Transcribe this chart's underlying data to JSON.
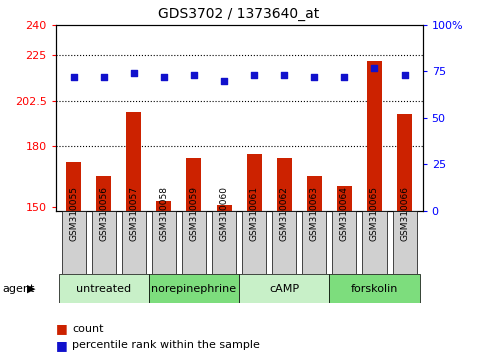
{
  "title": "GDS3702 / 1373640_at",
  "samples": [
    "GSM310055",
    "GSM310056",
    "GSM310057",
    "GSM310058",
    "GSM310059",
    "GSM310060",
    "GSM310061",
    "GSM310062",
    "GSM310063",
    "GSM310064",
    "GSM310065",
    "GSM310066"
  ],
  "count_values": [
    172,
    165,
    197,
    153,
    174,
    151,
    176,
    174,
    165,
    160,
    222,
    196
  ],
  "percentile_values": [
    72,
    72,
    74,
    72,
    73,
    70,
    73,
    73,
    72,
    72,
    77,
    73
  ],
  "agent_groups": [
    {
      "label": "untreated",
      "start": 0,
      "end": 3,
      "color": "#c8f0c8"
    },
    {
      "label": "norepinephrine",
      "start": 3,
      "end": 6,
      "color": "#7ddd7d"
    },
    {
      "label": "cAMP",
      "start": 6,
      "end": 9,
      "color": "#c8f0c8"
    },
    {
      "label": "forskolin",
      "start": 9,
      "end": 12,
      "color": "#7ddd7d"
    }
  ],
  "ylim_left": [
    148,
    240
  ],
  "ylim_right": [
    0,
    100
  ],
  "yticks_left": [
    150,
    180,
    202.5,
    225,
    240
  ],
  "ytick_labels_left": [
    "150",
    "180",
    "202.5",
    "225",
    "240"
  ],
  "yticks_right": [
    0,
    25,
    50,
    75,
    100
  ],
  "ytick_labels_right": [
    "0",
    "25",
    "50",
    "75",
    "100%"
  ],
  "hlines": [
    225,
    202.5,
    180
  ],
  "bar_color": "#cc2200",
  "dot_color": "#1111cc",
  "bar_width": 0.5,
  "legend_items": [
    {
      "color": "#cc2200",
      "label": "count"
    },
    {
      "color": "#1111cc",
      "label": "percentile rank within the sample"
    }
  ],
  "sample_box_color": "#d0d0d0",
  "title_fontsize": 10,
  "tick_fontsize": 8,
  "sample_fontsize": 6.5,
  "agent_fontsize": 8,
  "legend_fontsize": 8
}
